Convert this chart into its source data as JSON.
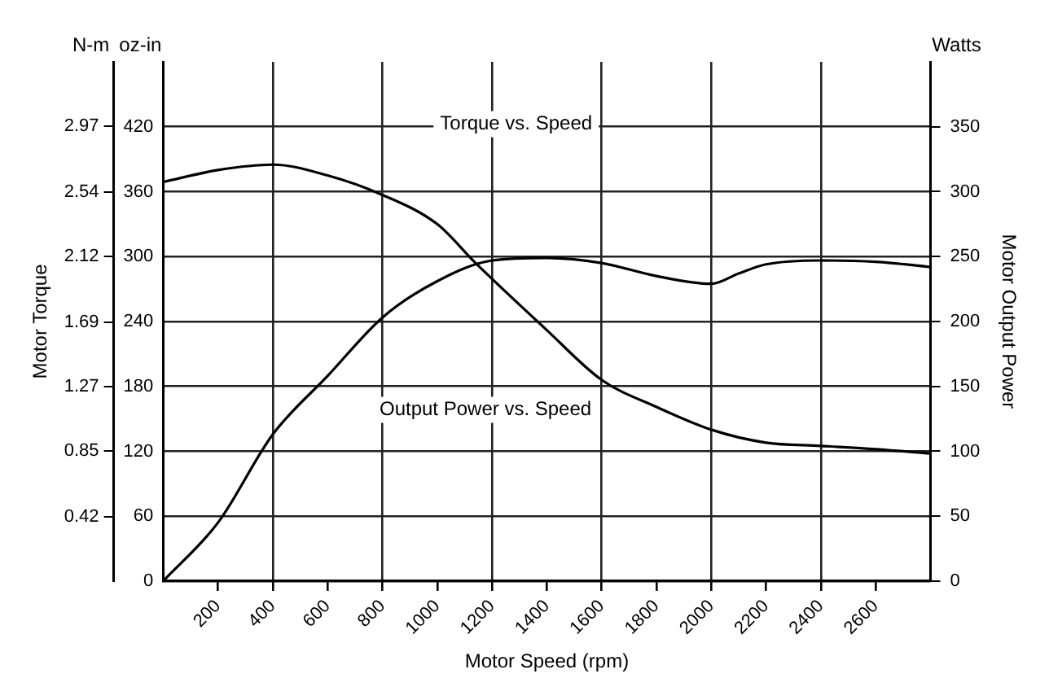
{
  "chart_data": {
    "type": "line",
    "xlabel": "Motor Speed (rpm)",
    "ylabel": "Motor Torque",
    "y2label": "Motor Output Power",
    "annotations": [
      "Torque vs. Speed",
      "Output Power vs. Speed",
      "N-m",
      "oz-in",
      "Watts"
    ],
    "series": [
      {
        "color": "#000000",
        "x": [
          0,
          200,
          400,
          600,
          800,
          1000,
          1140,
          1400,
          1600,
          1800,
          2000,
          2200,
          2400,
          2600,
          2800
        ],
        "values": [
          369,
          380,
          385,
          375,
          357,
          330,
          294,
          232,
          186,
          161,
          140,
          128,
          125,
          122,
          118
        ]
      },
      {
        "color": "#000000",
        "axis": "y2",
        "x": [
          0,
          200,
          400,
          600,
          800,
          1000,
          1200,
          1400,
          1600,
          1800,
          2000,
          2100,
          2200,
          2400,
          2600,
          2800
        ],
        "values": [
          0,
          45,
          113,
          158,
          203,
          231,
          247,
          249,
          245,
          235,
          229,
          237,
          244,
          247,
          246,
          242
        ]
      }
    ],
    "xlim": [
      0,
      2800
    ],
    "xticks": [
      200,
      400,
      600,
      800,
      1000,
      1200,
      1400,
      1600,
      1800,
      2000,
      2200,
      2400,
      2600
    ],
    "ylim": [
      0,
      480
    ],
    "yticks": [
      0,
      60,
      120,
      180,
      240,
      300,
      360,
      420
    ],
    "y2lim": [
      0,
      400
    ],
    "y2ticks": [
      0,
      50,
      100,
      150,
      200,
      250,
      300,
      350
    ],
    "y3lim": [
      0,
      3.39
    ],
    "y3ticks": [
      0.42,
      0.85,
      1.27,
      1.69,
      2.12,
      2.54,
      2.97
    ],
    "grid": true,
    "legend": false,
    "marker": "none",
    "line_style": "solid"
  }
}
